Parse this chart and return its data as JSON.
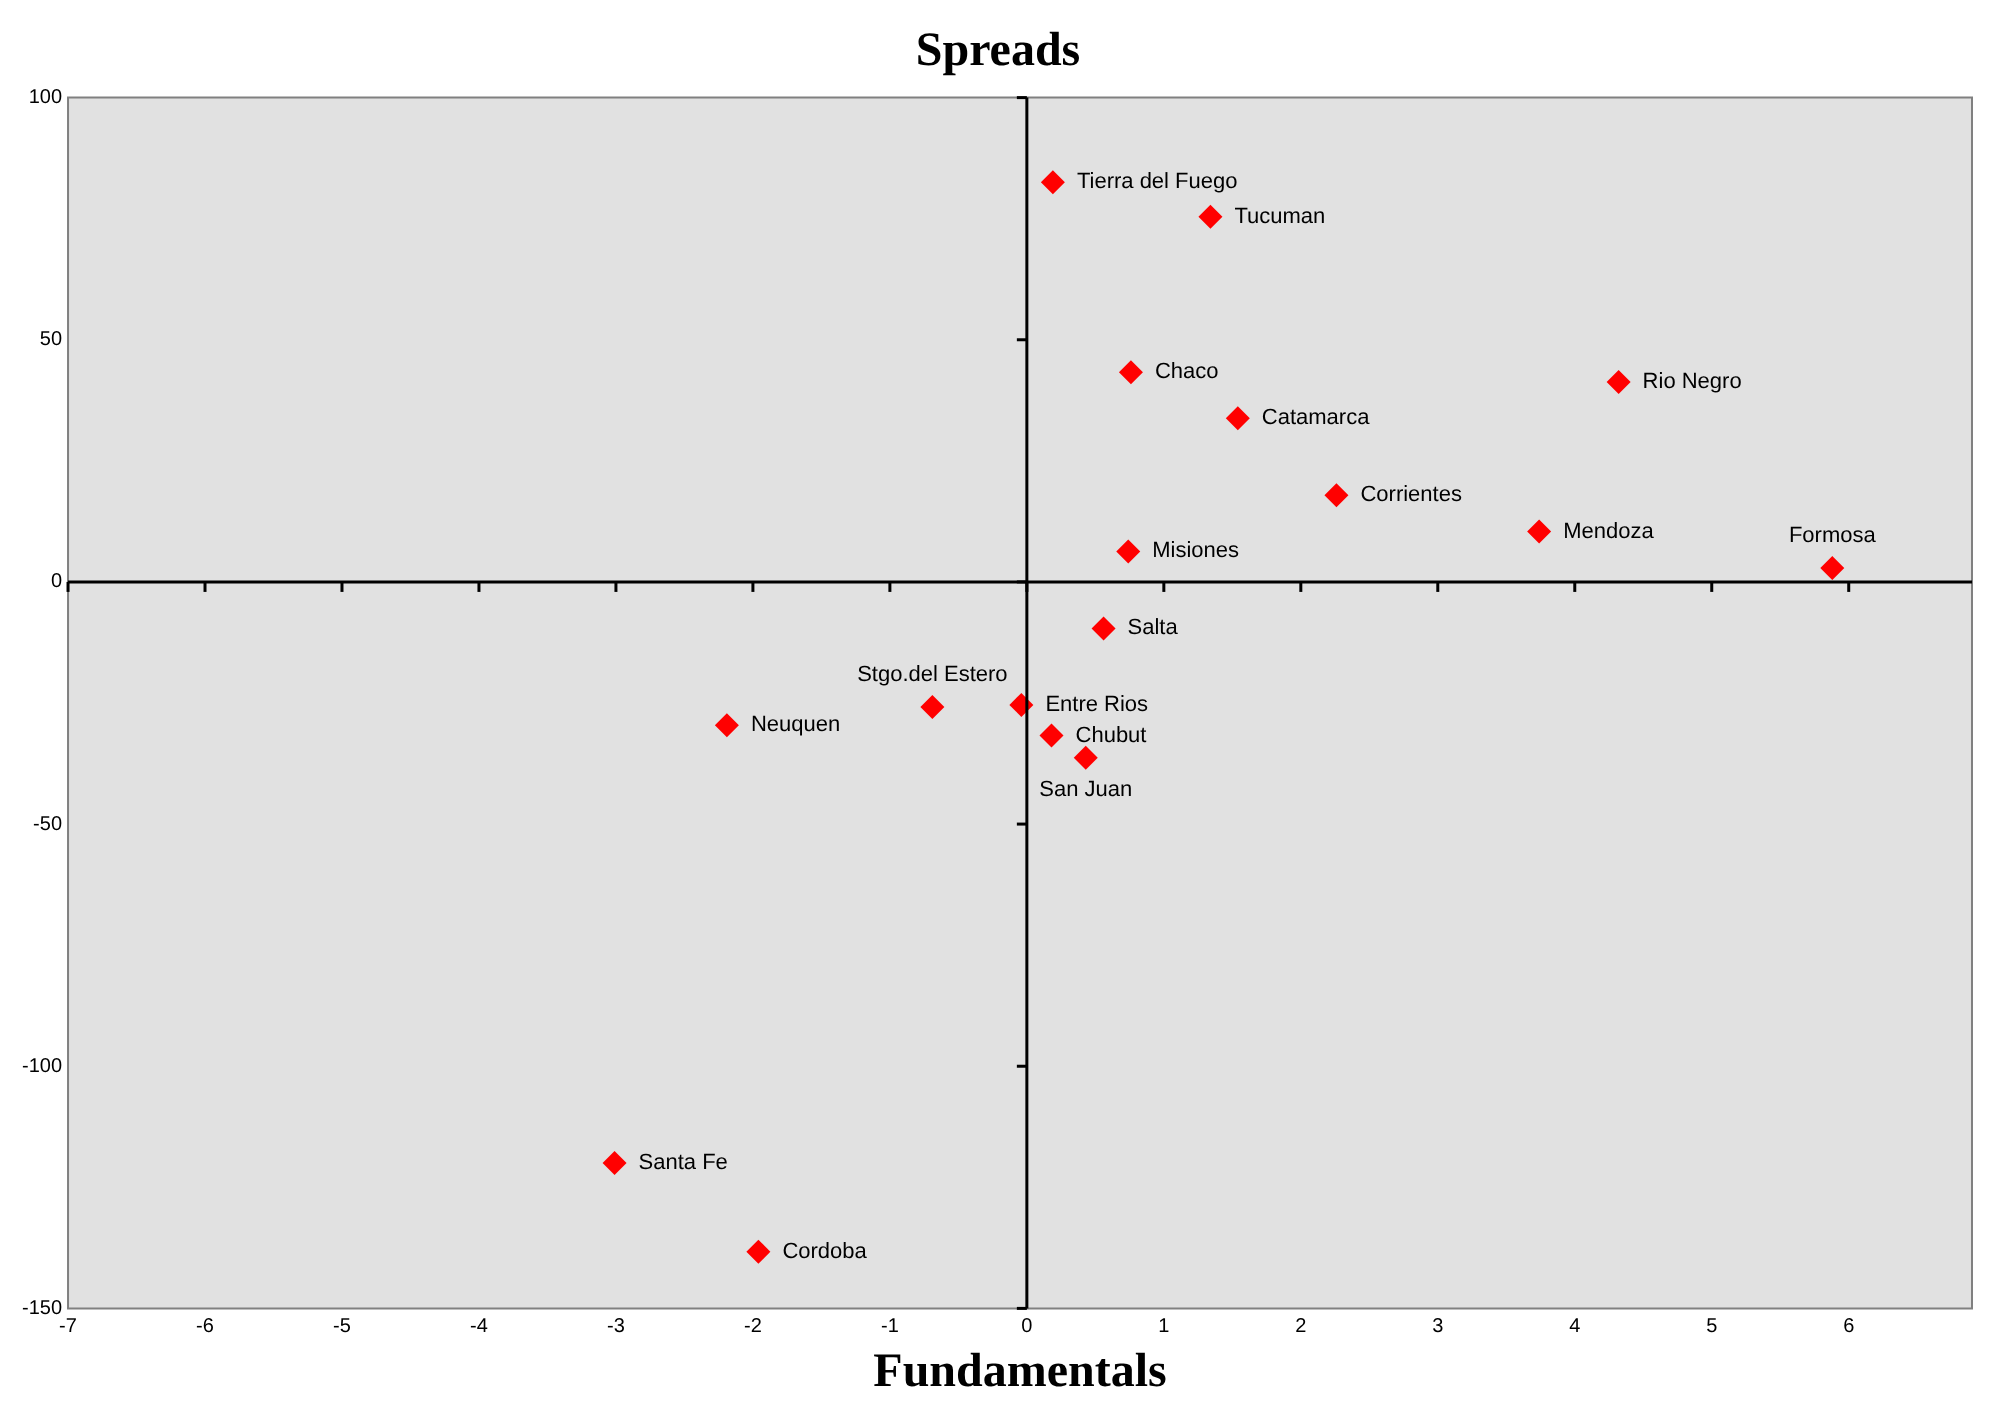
{
  "chart_data": {
    "type": "scatter",
    "title": "Spreads",
    "xlabel": "Fundamentals",
    "series": [
      {
        "color": "#ff0000",
        "x": [
          0.19,
          1.34,
          0.76,
          1.54,
          4.32,
          2.26,
          3.74,
          5.88,
          0.74,
          0.56,
          -0.04,
          0.18,
          0.43,
          -0.69,
          -2.19,
          -3.01,
          -1.96
        ],
        "values": [
          82.5,
          75.4,
          43.3,
          33.8,
          41.3,
          17.9,
          10.4,
          2.9,
          6.3,
          -9.6,
          -25.4,
          -31.7,
          -36.3,
          -25.8,
          -29.6,
          -120,
          -138.3
        ]
      }
    ],
    "annotations": [
      {
        "text": "Tierra del Fuego",
        "x": 0.19,
        "y": 82.5
      },
      {
        "text": "Tucuman",
        "x": 1.34,
        "y": 75.4
      },
      {
        "text": "Chaco",
        "x": 0.76,
        "y": 43.3
      },
      {
        "text": "Catamarca",
        "x": 1.54,
        "y": 33.8
      },
      {
        "text": "Rio Negro",
        "x": 4.32,
        "y": 41.3
      },
      {
        "text": "Corrientes",
        "x": 2.26,
        "y": 17.9
      },
      {
        "text": "Mendoza",
        "x": 3.74,
        "y": 10.4
      },
      {
        "text": "Formosa",
        "x": 5.88,
        "y": 2.9
      },
      {
        "text": "Misiones",
        "x": 0.74,
        "y": 6.3
      },
      {
        "text": "Salta",
        "x": 0.56,
        "y": -9.6
      },
      {
        "text": "Entre Rios",
        "x": -0.04,
        "y": -25.4
      },
      {
        "text": "Chubut",
        "x": 0.18,
        "y": -31.7
      },
      {
        "text": "San Juan",
        "x": 0.43,
        "y": -36.3
      },
      {
        "text": "Stgo.del Estero",
        "x": -0.69,
        "y": -25.8
      },
      {
        "text": "Neuquen",
        "x": -2.19,
        "y": -29.6
      },
      {
        "text": "Santa Fe",
        "x": -3.01,
        "y": -120
      },
      {
        "text": "Cordoba",
        "x": -1.96,
        "y": -138.3
      }
    ],
    "xlim": [
      -7,
      6.9
    ],
    "xticks": [
      -7,
      -6,
      -5,
      -4,
      -3,
      -2,
      -1,
      0,
      1,
      2,
      3,
      4,
      5,
      6
    ],
    "ylim": [
      -150,
      100
    ],
    "yticks": [
      -150,
      -100,
      -50,
      0,
      50,
      100
    ],
    "legend": false,
    "marker": "diamond"
  }
}
